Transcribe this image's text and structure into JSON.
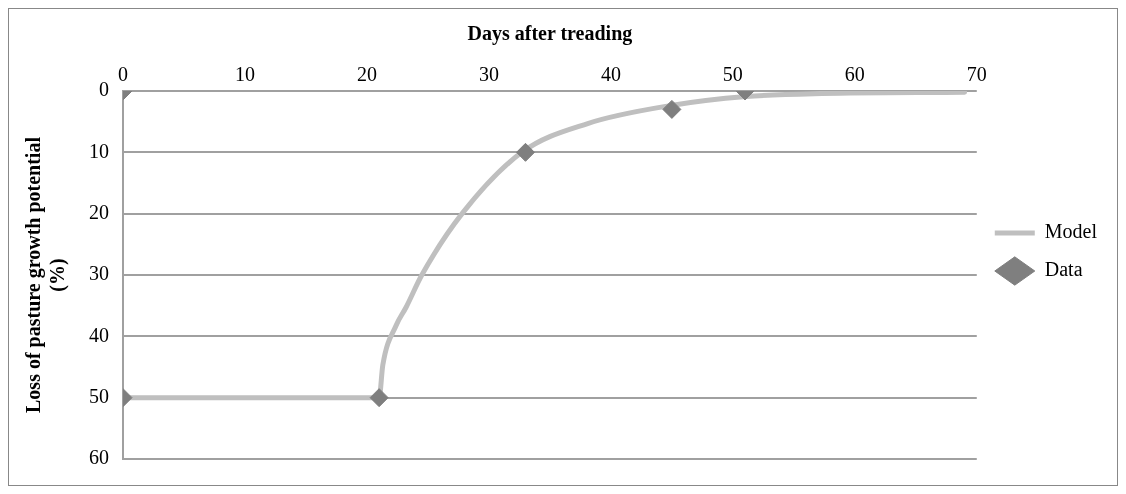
{
  "chart_data": {
    "type": "scatter",
    "xlabel": "Days after treading",
    "ylabel": "Loss of pasture growth potential (%)",
    "xlim": [
      0,
      70
    ],
    "xticks": [
      0,
      10,
      20,
      30,
      40,
      50,
      60,
      70
    ],
    "ylim": [
      60,
      0
    ],
    "yticks": [
      0,
      10,
      20,
      30,
      40,
      50,
      60
    ],
    "grid": "y",
    "legend": "right",
    "series": [
      {
        "name": "Model",
        "type": "line",
        "color": "#bfbfbf",
        "marker": "none",
        "x": [
          0,
          21,
          21.3,
          22.4,
          23.2,
          24.5,
          27.8,
          32.7,
          38.1,
          44.8,
          51.1,
          57.3,
          69
        ],
        "values": [
          50,
          50,
          44.7,
          38.2,
          35.3,
          30,
          20,
          10,
          5.3,
          2.4,
          0.9,
          0.4,
          0.2
        ]
      },
      {
        "name": "Data",
        "type": "scatter",
        "color": "#7f7f7f",
        "marker": "diamond",
        "x": [
          0,
          0,
          21,
          33,
          45,
          51
        ],
        "values": [
          0,
          50,
          50,
          10,
          3,
          0
        ]
      }
    ]
  }
}
